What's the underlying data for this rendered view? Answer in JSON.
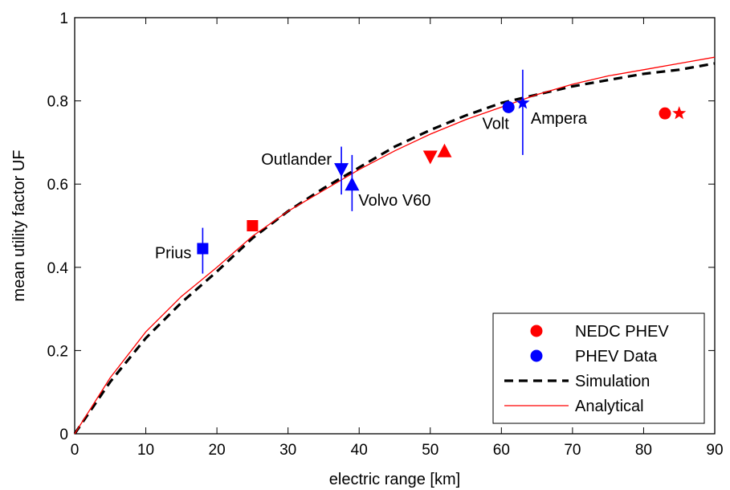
{
  "chart_data": {
    "type": "scatter",
    "title": "",
    "xlabel": "electric range [km]",
    "ylabel": "mean utility factor UF",
    "xlim": [
      0,
      90
    ],
    "ylim": [
      0,
      1
    ],
    "xticks": [
      0,
      10,
      20,
      30,
      40,
      50,
      60,
      70,
      80,
      90
    ],
    "yticks": [
      0,
      0.2,
      0.4,
      0.6,
      0.8,
      1
    ],
    "ytick_labels": [
      "0",
      "0.2",
      "0.4",
      "0.6",
      "0.8",
      "1"
    ],
    "grid": false,
    "legend_position": "bottom-right",
    "colors": {
      "nedc": "#ff0000",
      "data": "#0000ff",
      "simulation": "#000000",
      "analytical": "#ff0000"
    },
    "legend": [
      {
        "label": "NEDC PHEV",
        "kind": "marker",
        "color": "#ff0000"
      },
      {
        "label": "PHEV Data",
        "kind": "marker",
        "color": "#0000ff"
      },
      {
        "label": "Simulation",
        "kind": "dashed",
        "color": "#000000"
      },
      {
        "label": "Analytical",
        "kind": "line",
        "color": "#ff0000"
      }
    ],
    "nedc_points": [
      {
        "marker": "square",
        "x": 25,
        "y": 0.5
      },
      {
        "marker": "triangle-down",
        "x": 50,
        "y": 0.665
      },
      {
        "marker": "triangle-up",
        "x": 52,
        "y": 0.68
      },
      {
        "marker": "circle",
        "x": 83,
        "y": 0.77
      },
      {
        "marker": "star",
        "x": 85,
        "y": 0.77
      }
    ],
    "data_points": [
      {
        "label": "Prius",
        "marker": "square",
        "x": 18,
        "y": 0.445,
        "err_low": 0.385,
        "err_high": 0.495
      },
      {
        "label": "Outlander",
        "marker": "triangle-down",
        "x": 37.5,
        "y": 0.635,
        "err_low": 0.575,
        "err_high": 0.69
      },
      {
        "label": "Volvo V60",
        "marker": "triangle-up",
        "x": 39,
        "y": 0.6,
        "err_low": 0.535,
        "err_high": 0.67
      },
      {
        "label": "Volt",
        "marker": "circle",
        "x": 61,
        "y": 0.785,
        "err_low": null,
        "err_high": null
      },
      {
        "label": "Ampera",
        "marker": "star",
        "x": 63,
        "y": 0.795,
        "err_low": 0.67,
        "err_high": 0.875
      }
    ],
    "simulation_x": [
      0,
      5,
      10,
      15,
      20,
      25,
      30,
      35,
      40,
      45,
      50,
      55,
      60,
      65,
      70,
      75,
      80,
      85,
      90
    ],
    "simulation_y": [
      0,
      0.125,
      0.23,
      0.315,
      0.39,
      0.47,
      0.535,
      0.59,
      0.64,
      0.69,
      0.73,
      0.765,
      0.795,
      0.815,
      0.835,
      0.85,
      0.865,
      0.875,
      0.89
    ],
    "analytical_x": [
      0,
      5,
      10,
      15,
      20,
      25,
      30,
      35,
      40,
      45,
      50,
      55,
      60,
      65,
      70,
      75,
      80,
      85,
      90
    ],
    "analytical_y": [
      0,
      0.135,
      0.245,
      0.33,
      0.4,
      0.475,
      0.535,
      0.585,
      0.635,
      0.68,
      0.72,
      0.755,
      0.785,
      0.815,
      0.84,
      0.86,
      0.875,
      0.89,
      0.905
    ]
  }
}
